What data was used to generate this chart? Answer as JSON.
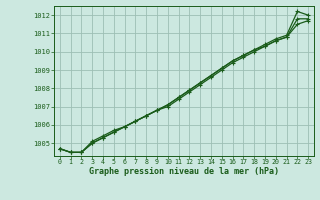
{
  "title": "Graphe pression niveau de la mer (hPa)",
  "bg_color": "#cce8e0",
  "grid_color": "#9dbfb4",
  "line_color": "#1a5c1a",
  "xlim": [
    -0.5,
    23.5
  ],
  "ylim": [
    1004.3,
    1012.5
  ],
  "yticks": [
    1005,
    1006,
    1007,
    1008,
    1009,
    1010,
    1011,
    1012
  ],
  "xticks": [
    0,
    1,
    2,
    3,
    4,
    5,
    6,
    7,
    8,
    9,
    10,
    11,
    12,
    13,
    14,
    15,
    16,
    17,
    18,
    19,
    20,
    21,
    22,
    23
  ],
  "series1": [
    1004.7,
    1004.5,
    1004.5,
    1005.1,
    1005.4,
    1005.7,
    1005.9,
    1006.2,
    1006.5,
    1006.8,
    1007.1,
    1007.5,
    1007.9,
    1008.3,
    1008.7,
    1009.1,
    1009.5,
    1009.8,
    1010.1,
    1010.4,
    1010.7,
    1010.9,
    1012.2,
    1012.0
  ],
  "series2": [
    1004.7,
    1004.5,
    1004.5,
    1005.0,
    1005.3,
    1005.6,
    1005.9,
    1006.2,
    1006.5,
    1006.8,
    1007.1,
    1007.5,
    1007.9,
    1008.3,
    1008.7,
    1009.1,
    1009.5,
    1009.8,
    1010.1,
    1010.3,
    1010.6,
    1010.8,
    1011.8,
    1011.8
  ],
  "series3": [
    1004.7,
    1004.5,
    1004.5,
    1005.0,
    1005.3,
    1005.6,
    1005.9,
    1006.2,
    1006.5,
    1006.8,
    1007.0,
    1007.4,
    1007.8,
    1008.2,
    1008.6,
    1009.0,
    1009.4,
    1009.7,
    1010.0,
    1010.3,
    1010.6,
    1010.8,
    1011.5,
    1011.7
  ]
}
